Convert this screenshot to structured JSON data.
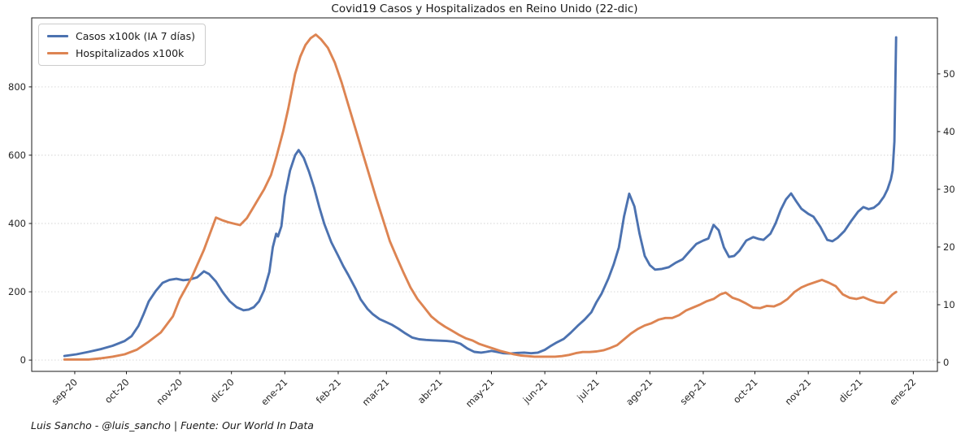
{
  "title": "Covid19 Casos y Hospitalizados en Reino Unido (22-dic)",
  "footer": "Luis Sancho - @luis_sancho | Fuente: Our World In Data",
  "legend": [
    {
      "label": "Casos x100k (IA 7 días)",
      "color": "#4C72B0"
    },
    {
      "label": "Hospitalizados x100k",
      "color": "#DD8452"
    }
  ],
  "colors": {
    "casos_line": "#4C72B0",
    "hospitalizados_line": "#DD8452",
    "axis_text": "#262626",
    "gridline": "#d3d3d3",
    "background": "#ffffff"
  },
  "chart_data": {
    "type": "line",
    "title": "Covid19 Casos y Hospitalizados en Reino Unido (22-dic)",
    "source": "Luis Sancho - @luis_sancho | Fuente: Our World In Data",
    "grid": "horizontal-dotted",
    "legend_position": "upper-left",
    "x_range": [
      "2020-08-07",
      "2022-01-15"
    ],
    "left_axis": {
      "label": "Casos x100k (IA 7 días)",
      "ticks": [
        0,
        200,
        400,
        600,
        800
      ],
      "range": [
        -33,
        1002
      ]
    },
    "right_axis": {
      "label": "Hospitalizados x100k",
      "ticks": [
        0,
        10,
        20,
        30,
        40,
        50
      ],
      "range": [
        -1.55,
        59.7
      ]
    },
    "x_ticks": [
      {
        "date": "2020-09-01",
        "label": "sep-20"
      },
      {
        "date": "2020-10-01",
        "label": "oct-20"
      },
      {
        "date": "2020-11-01",
        "label": "nov-20"
      },
      {
        "date": "2020-12-01",
        "label": "dic-20"
      },
      {
        "date": "2021-01-01",
        "label": "ene-21"
      },
      {
        "date": "2021-02-01",
        "label": "feb-21"
      },
      {
        "date": "2021-03-01",
        "label": "mar-21"
      },
      {
        "date": "2021-04-01",
        "label": "abr-21"
      },
      {
        "date": "2021-05-01",
        "label": "may-21"
      },
      {
        "date": "2021-06-01",
        "label": "jun-21"
      },
      {
        "date": "2021-07-01",
        "label": "jul-21"
      },
      {
        "date": "2021-08-01",
        "label": "ago-21"
      },
      {
        "date": "2021-09-01",
        "label": "sep-21"
      },
      {
        "date": "2021-10-01",
        "label": "oct-21"
      },
      {
        "date": "2021-11-01",
        "label": "nov-21"
      },
      {
        "date": "2021-12-01",
        "label": "dic-21"
      },
      {
        "date": "2022-01-01",
        "label": "ene-22"
      }
    ],
    "series": [
      {
        "name": "Casos x100k (IA 7 días)",
        "axis": "left",
        "color": "#4C72B0",
        "points": [
          [
            "2020-08-26",
            12
          ],
          [
            "2020-09-02",
            17
          ],
          [
            "2020-09-09",
            24
          ],
          [
            "2020-09-16",
            32
          ],
          [
            "2020-09-23",
            42
          ],
          [
            "2020-09-30",
            56
          ],
          [
            "2020-10-04",
            70
          ],
          [
            "2020-10-08",
            100
          ],
          [
            "2020-10-11",
            135
          ],
          [
            "2020-10-14",
            172
          ],
          [
            "2020-10-18",
            202
          ],
          [
            "2020-10-22",
            226
          ],
          [
            "2020-10-26",
            235
          ],
          [
            "2020-10-30",
            238
          ],
          [
            "2020-11-03",
            234
          ],
          [
            "2020-11-07",
            236
          ],
          [
            "2020-11-11",
            242
          ],
          [
            "2020-11-15",
            260
          ],
          [
            "2020-11-18",
            252
          ],
          [
            "2020-11-22",
            230
          ],
          [
            "2020-11-26",
            198
          ],
          [
            "2020-11-30",
            172
          ],
          [
            "2020-12-04",
            155
          ],
          [
            "2020-12-08",
            146
          ],
          [
            "2020-12-11",
            148
          ],
          [
            "2020-12-14",
            155
          ],
          [
            "2020-12-17",
            172
          ],
          [
            "2020-12-20",
            205
          ],
          [
            "2020-12-23",
            258
          ],
          [
            "2020-12-25",
            330
          ],
          [
            "2020-12-27",
            370
          ],
          [
            "2020-12-28",
            362
          ],
          [
            "2020-12-30",
            392
          ],
          [
            "2021-01-01",
            480
          ],
          [
            "2021-01-04",
            555
          ],
          [
            "2021-01-07",
            600
          ],
          [
            "2021-01-09",
            615
          ],
          [
            "2021-01-12",
            592
          ],
          [
            "2021-01-15",
            552
          ],
          [
            "2021-01-18",
            505
          ],
          [
            "2021-01-21",
            448
          ],
          [
            "2021-01-24",
            398
          ],
          [
            "2021-01-28",
            345
          ],
          [
            "2021-02-01",
            305
          ],
          [
            "2021-02-04",
            275
          ],
          [
            "2021-02-07",
            248
          ],
          [
            "2021-02-11",
            210
          ],
          [
            "2021-02-14",
            178
          ],
          [
            "2021-02-18",
            150
          ],
          [
            "2021-02-21",
            135
          ],
          [
            "2021-02-25",
            120
          ],
          [
            "2021-02-28",
            113
          ],
          [
            "2021-03-04",
            104
          ],
          [
            "2021-03-08",
            92
          ],
          [
            "2021-03-12",
            78
          ],
          [
            "2021-03-16",
            66
          ],
          [
            "2021-03-20",
            61
          ],
          [
            "2021-03-24",
            59
          ],
          [
            "2021-03-28",
            58
          ],
          [
            "2021-04-01",
            57
          ],
          [
            "2021-04-05",
            56
          ],
          [
            "2021-04-09",
            54
          ],
          [
            "2021-04-13",
            48
          ],
          [
            "2021-04-17",
            34
          ],
          [
            "2021-04-21",
            24
          ],
          [
            "2021-04-25",
            22
          ],
          [
            "2021-04-28",
            24
          ],
          [
            "2021-05-01",
            27
          ],
          [
            "2021-05-04",
            24
          ],
          [
            "2021-05-08",
            20
          ],
          [
            "2021-05-12",
            19
          ],
          [
            "2021-05-16",
            21
          ],
          [
            "2021-05-20",
            22
          ],
          [
            "2021-05-24",
            20
          ],
          [
            "2021-05-28",
            22
          ],
          [
            "2021-06-01",
            30
          ],
          [
            "2021-06-04",
            40
          ],
          [
            "2021-06-08",
            52
          ],
          [
            "2021-06-12",
            62
          ],
          [
            "2021-06-16",
            80
          ],
          [
            "2021-06-20",
            100
          ],
          [
            "2021-06-24",
            118
          ],
          [
            "2021-06-28",
            140
          ],
          [
            "2021-07-01",
            170
          ],
          [
            "2021-07-04",
            195
          ],
          [
            "2021-07-08",
            240
          ],
          [
            "2021-07-11",
            280
          ],
          [
            "2021-07-14",
            330
          ],
          [
            "2021-07-17",
            420
          ],
          [
            "2021-07-20",
            487
          ],
          [
            "2021-07-23",
            450
          ],
          [
            "2021-07-26",
            370
          ],
          [
            "2021-07-29",
            305
          ],
          [
            "2021-08-01",
            278
          ],
          [
            "2021-08-04",
            265
          ],
          [
            "2021-08-08",
            267
          ],
          [
            "2021-08-12",
            272
          ],
          [
            "2021-08-16",
            285
          ],
          [
            "2021-08-20",
            295
          ],
          [
            "2021-08-24",
            318
          ],
          [
            "2021-08-28",
            340
          ],
          [
            "2021-09-01",
            350
          ],
          [
            "2021-09-04",
            356
          ],
          [
            "2021-09-07",
            396
          ],
          [
            "2021-09-10",
            380
          ],
          [
            "2021-09-13",
            330
          ],
          [
            "2021-09-16",
            302
          ],
          [
            "2021-09-19",
            305
          ],
          [
            "2021-09-22",
            320
          ],
          [
            "2021-09-26",
            350
          ],
          [
            "2021-09-30",
            360
          ],
          [
            "2021-10-03",
            355
          ],
          [
            "2021-10-06",
            352
          ],
          [
            "2021-10-10",
            370
          ],
          [
            "2021-10-13",
            400
          ],
          [
            "2021-10-16",
            440
          ],
          [
            "2021-10-19",
            470
          ],
          [
            "2021-10-22",
            488
          ],
          [
            "2021-10-25",
            465
          ],
          [
            "2021-10-28",
            443
          ],
          [
            "2021-11-01",
            428
          ],
          [
            "2021-11-04",
            420
          ],
          [
            "2021-11-08",
            390
          ],
          [
            "2021-11-12",
            352
          ],
          [
            "2021-11-15",
            348
          ],
          [
            "2021-11-18",
            358
          ],
          [
            "2021-11-22",
            378
          ],
          [
            "2021-11-26",
            408
          ],
          [
            "2021-11-30",
            435
          ],
          [
            "2021-12-03",
            448
          ],
          [
            "2021-12-06",
            442
          ],
          [
            "2021-12-09",
            446
          ],
          [
            "2021-12-12",
            458
          ],
          [
            "2021-12-15",
            479
          ],
          [
            "2021-12-17",
            500
          ],
          [
            "2021-12-19",
            530
          ],
          [
            "2021-12-20",
            555
          ],
          [
            "2021-12-21",
            640
          ],
          [
            "2021-12-22",
            945
          ]
        ]
      },
      {
        "name": "Hospitalizados x100k",
        "axis": "right",
        "color": "#DD8452",
        "points": [
          [
            "2020-08-26",
            0.5
          ],
          [
            "2020-09-02",
            0.5
          ],
          [
            "2020-09-09",
            0.5
          ],
          [
            "2020-09-16",
            0.7
          ],
          [
            "2020-09-23",
            1.0
          ],
          [
            "2020-09-30",
            1.4
          ],
          [
            "2020-10-07",
            2.2
          ],
          [
            "2020-10-14",
            3.6
          ],
          [
            "2020-10-21",
            5.2
          ],
          [
            "2020-10-28",
            8.0
          ],
          [
            "2020-11-01",
            11.0
          ],
          [
            "2020-11-08",
            14.8
          ],
          [
            "2020-11-15",
            19.5
          ],
          [
            "2020-11-22",
            25.1
          ],
          [
            "2020-11-26",
            24.6
          ],
          [
            "2020-11-29",
            24.3
          ],
          [
            "2020-12-03",
            24.0
          ],
          [
            "2020-12-06",
            23.8
          ],
          [
            "2020-12-10",
            25.0
          ],
          [
            "2020-12-13",
            26.5
          ],
          [
            "2020-12-16",
            28.0
          ],
          [
            "2020-12-20",
            30.0
          ],
          [
            "2020-12-24",
            32.5
          ],
          [
            "2020-12-27",
            35.5
          ],
          [
            "2020-12-31",
            40.0
          ],
          [
            "2021-01-03",
            44.0
          ],
          [
            "2021-01-07",
            50.0
          ],
          [
            "2021-01-10",
            53.0
          ],
          [
            "2021-01-13",
            55.0
          ],
          [
            "2021-01-16",
            56.2
          ],
          [
            "2021-01-19",
            56.8
          ],
          [
            "2021-01-22",
            56.0
          ],
          [
            "2021-01-26",
            54.5
          ],
          [
            "2021-01-30",
            52.0
          ],
          [
            "2021-02-03",
            48.5
          ],
          [
            "2021-02-07",
            44.5
          ],
          [
            "2021-02-11",
            40.5
          ],
          [
            "2021-02-15",
            36.5
          ],
          [
            "2021-02-19",
            32.5
          ],
          [
            "2021-02-23",
            28.5
          ],
          [
            "2021-02-27",
            24.8
          ],
          [
            "2021-03-03",
            21.0
          ],
          [
            "2021-03-07",
            18.2
          ],
          [
            "2021-03-11",
            15.5
          ],
          [
            "2021-03-15",
            13.0
          ],
          [
            "2021-03-19",
            11.0
          ],
          [
            "2021-03-23",
            9.5
          ],
          [
            "2021-03-27",
            8.0
          ],
          [
            "2021-03-31",
            7.0
          ],
          [
            "2021-04-04",
            6.2
          ],
          [
            "2021-04-08",
            5.5
          ],
          [
            "2021-04-12",
            4.8
          ],
          [
            "2021-04-16",
            4.2
          ],
          [
            "2021-04-20",
            3.8
          ],
          [
            "2021-04-24",
            3.2
          ],
          [
            "2021-04-28",
            2.8
          ],
          [
            "2021-05-02",
            2.4
          ],
          [
            "2021-05-06",
            2.0
          ],
          [
            "2021-05-10",
            1.7
          ],
          [
            "2021-05-14",
            1.4
          ],
          [
            "2021-05-18",
            1.2
          ],
          [
            "2021-05-22",
            1.1
          ],
          [
            "2021-05-26",
            1.0
          ],
          [
            "2021-05-30",
            1.0
          ],
          [
            "2021-06-03",
            1.0
          ],
          [
            "2021-06-07",
            1.0
          ],
          [
            "2021-06-11",
            1.1
          ],
          [
            "2021-06-15",
            1.3
          ],
          [
            "2021-06-19",
            1.6
          ],
          [
            "2021-06-23",
            1.8
          ],
          [
            "2021-06-27",
            1.8
          ],
          [
            "2021-07-01",
            1.9
          ],
          [
            "2021-07-05",
            2.1
          ],
          [
            "2021-07-09",
            2.5
          ],
          [
            "2021-07-13",
            3.0
          ],
          [
            "2021-07-17",
            4.0
          ],
          [
            "2021-07-21",
            5.0
          ],
          [
            "2021-07-25",
            5.8
          ],
          [
            "2021-07-29",
            6.4
          ],
          [
            "2021-08-02",
            6.8
          ],
          [
            "2021-08-06",
            7.4
          ],
          [
            "2021-08-10",
            7.7
          ],
          [
            "2021-08-14",
            7.7
          ],
          [
            "2021-08-18",
            8.2
          ],
          [
            "2021-08-22",
            9.0
          ],
          [
            "2021-08-26",
            9.5
          ],
          [
            "2021-08-30",
            10.0
          ],
          [
            "2021-09-03",
            10.6
          ],
          [
            "2021-09-07",
            11.0
          ],
          [
            "2021-09-11",
            11.8
          ],
          [
            "2021-09-14",
            12.1
          ],
          [
            "2021-09-18",
            11.2
          ],
          [
            "2021-09-22",
            10.8
          ],
          [
            "2021-09-26",
            10.2
          ],
          [
            "2021-09-30",
            9.5
          ],
          [
            "2021-10-04",
            9.4
          ],
          [
            "2021-10-08",
            9.8
          ],
          [
            "2021-10-12",
            9.7
          ],
          [
            "2021-10-16",
            10.2
          ],
          [
            "2021-10-20",
            11.0
          ],
          [
            "2021-10-24",
            12.2
          ],
          [
            "2021-10-28",
            13.0
          ],
          [
            "2021-11-01",
            13.5
          ],
          [
            "2021-11-05",
            13.9
          ],
          [
            "2021-11-09",
            14.3
          ],
          [
            "2021-11-13",
            13.8
          ],
          [
            "2021-11-17",
            13.2
          ],
          [
            "2021-11-21",
            11.8
          ],
          [
            "2021-11-25",
            11.2
          ],
          [
            "2021-11-29",
            11.0
          ],
          [
            "2021-12-03",
            11.3
          ],
          [
            "2021-12-07",
            10.8
          ],
          [
            "2021-12-11",
            10.4
          ],
          [
            "2021-12-15",
            10.3
          ],
          [
            "2021-12-18",
            11.2
          ],
          [
            "2021-12-20",
            11.8
          ],
          [
            "2021-12-22",
            12.2
          ]
        ]
      }
    ]
  }
}
